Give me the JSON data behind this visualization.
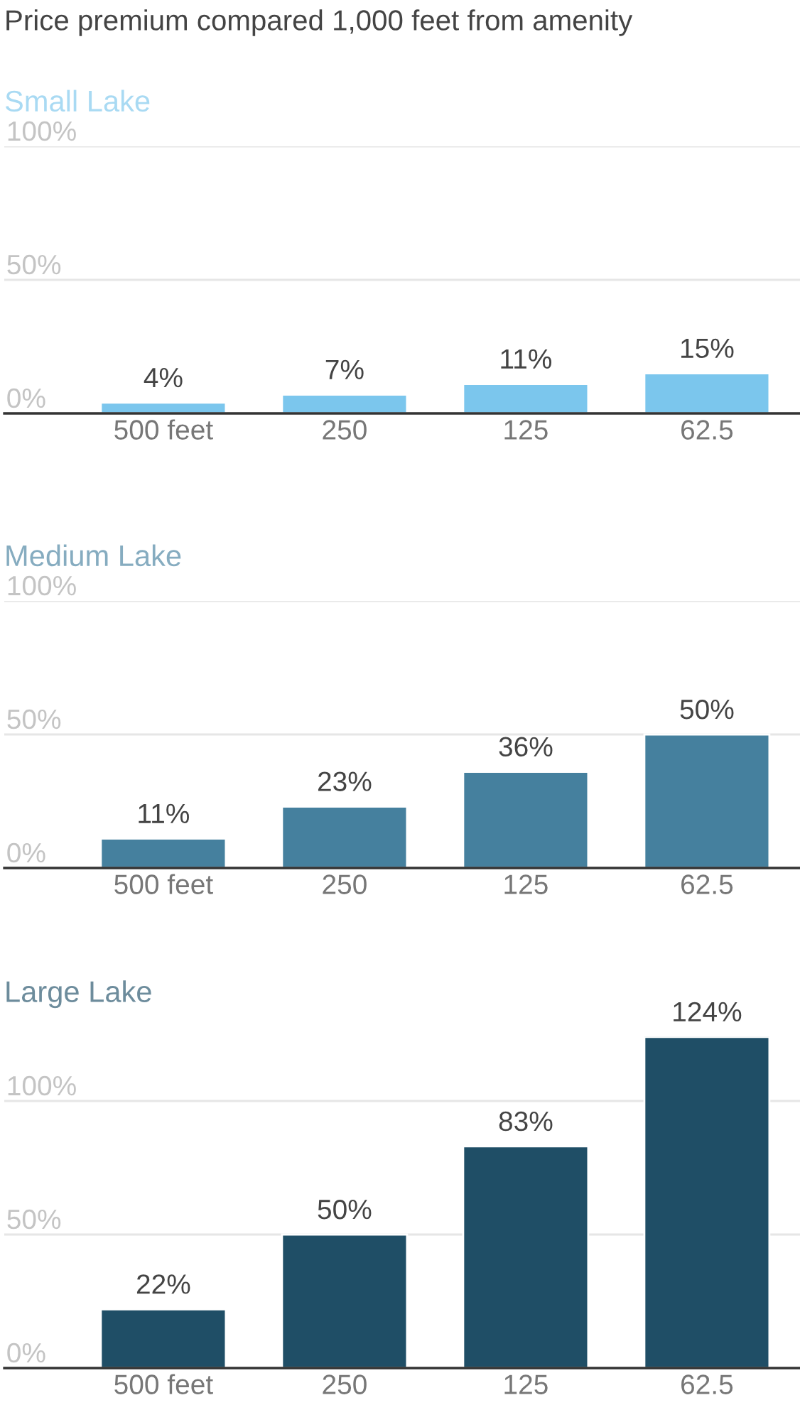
{
  "chart_data": [
    {
      "type": "bar",
      "title": "Price premium compared 1,000 feet from amenity",
      "subtitle": "Small Lake",
      "categories": [
        "500 feet",
        "250",
        "125",
        "62.5"
      ],
      "values": [
        4,
        7,
        11,
        15
      ],
      "color": "#7bc6ed",
      "value_labels": [
        "4%",
        "7%",
        "11%",
        "15%"
      ],
      "ylim": [
        0,
        100
      ],
      "yticks": [
        {
          "value": 0,
          "label": "0%"
        },
        {
          "value": 50,
          "label": "50%"
        },
        {
          "value": 100,
          "label": "100%"
        }
      ],
      "grid": "y"
    },
    {
      "type": "bar",
      "subtitle": "Medium Lake",
      "categories": [
        "500 feet",
        "250",
        "125",
        "62.5"
      ],
      "values": [
        11,
        23,
        36,
        50
      ],
      "color": "#45809e",
      "value_labels": [
        "11%",
        "23%",
        "36%",
        "50%"
      ],
      "ylim": [
        0,
        100
      ],
      "yticks": [
        {
          "value": 0,
          "label": "0%"
        },
        {
          "value": 50,
          "label": "50%"
        },
        {
          "value": 100,
          "label": "100%"
        }
      ],
      "grid": "y"
    },
    {
      "type": "bar",
      "subtitle": "Large Lake",
      "categories": [
        "500 feet",
        "250",
        "125",
        "62.5"
      ],
      "values": [
        22,
        50,
        83,
        124
      ],
      "color": "#1f4e66",
      "value_labels": [
        "22%",
        "50%",
        "83%",
        "124%"
      ],
      "ylim": [
        0,
        124
      ],
      "yticks": [
        {
          "value": 0,
          "label": "0%"
        },
        {
          "value": 50,
          "label": "50%"
        },
        {
          "value": 100,
          "label": "100%"
        }
      ],
      "grid": "y"
    }
  ]
}
